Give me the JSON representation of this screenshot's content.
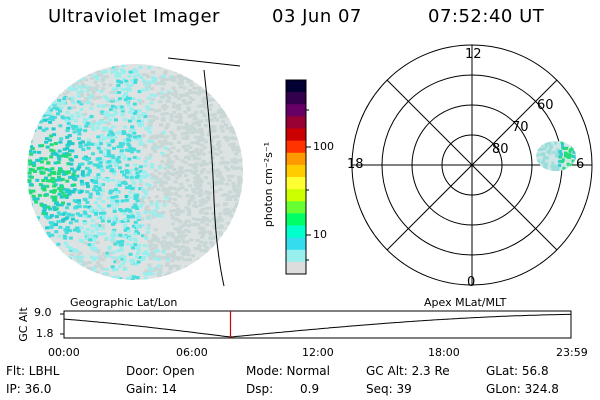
{
  "header": {
    "title": "Ultraviolet Imager",
    "date": "03 Jun 07",
    "time": "07:52:40 UT"
  },
  "colorbar": {
    "unit": "photon cm⁻²s⁻¹",
    "ticks": [
      "100",
      "10"
    ],
    "colors": [
      "#000033",
      "#33004d",
      "#660066",
      "#990033",
      "#cc0000",
      "#ff3300",
      "#ff9900",
      "#ffcc00",
      "#ffff33",
      "#ccff00",
      "#66ff33",
      "#00ff66",
      "#00ffcc",
      "#33ddee",
      "#99eeee",
      "#dddddd"
    ]
  },
  "polar": {
    "mlt_labels": [
      "12",
      "18",
      "6",
      "0"
    ],
    "mlat_labels": [
      "60",
      "70",
      "80"
    ]
  },
  "panel_labels": {
    "left": "Geographic Lat/Lon",
    "right": "Apex MLat/MLT"
  },
  "timeline": {
    "ylabel": "GC Alt",
    "y_ticks": [
      "9.0",
      "1.8"
    ],
    "x_ticks": [
      "00:00",
      "06:00",
      "12:00",
      "18:00",
      "23:59"
    ],
    "current_time_hours": 7.88,
    "marker_color": "#cc0000"
  },
  "info": {
    "flt": "Flt: LBHL",
    "ip": "IP: 36.0",
    "door": "Door: Open",
    "gain": "Gain: 14",
    "mode": "Mode: Normal",
    "dsp_label": "Dsp:",
    "dsp_value": "0.9",
    "gcalt": "GC Alt: 2.3 Re",
    "seq": "Seq: 39",
    "glat": "GLat:  56.8",
    "glon": "GLon: 324.8"
  }
}
